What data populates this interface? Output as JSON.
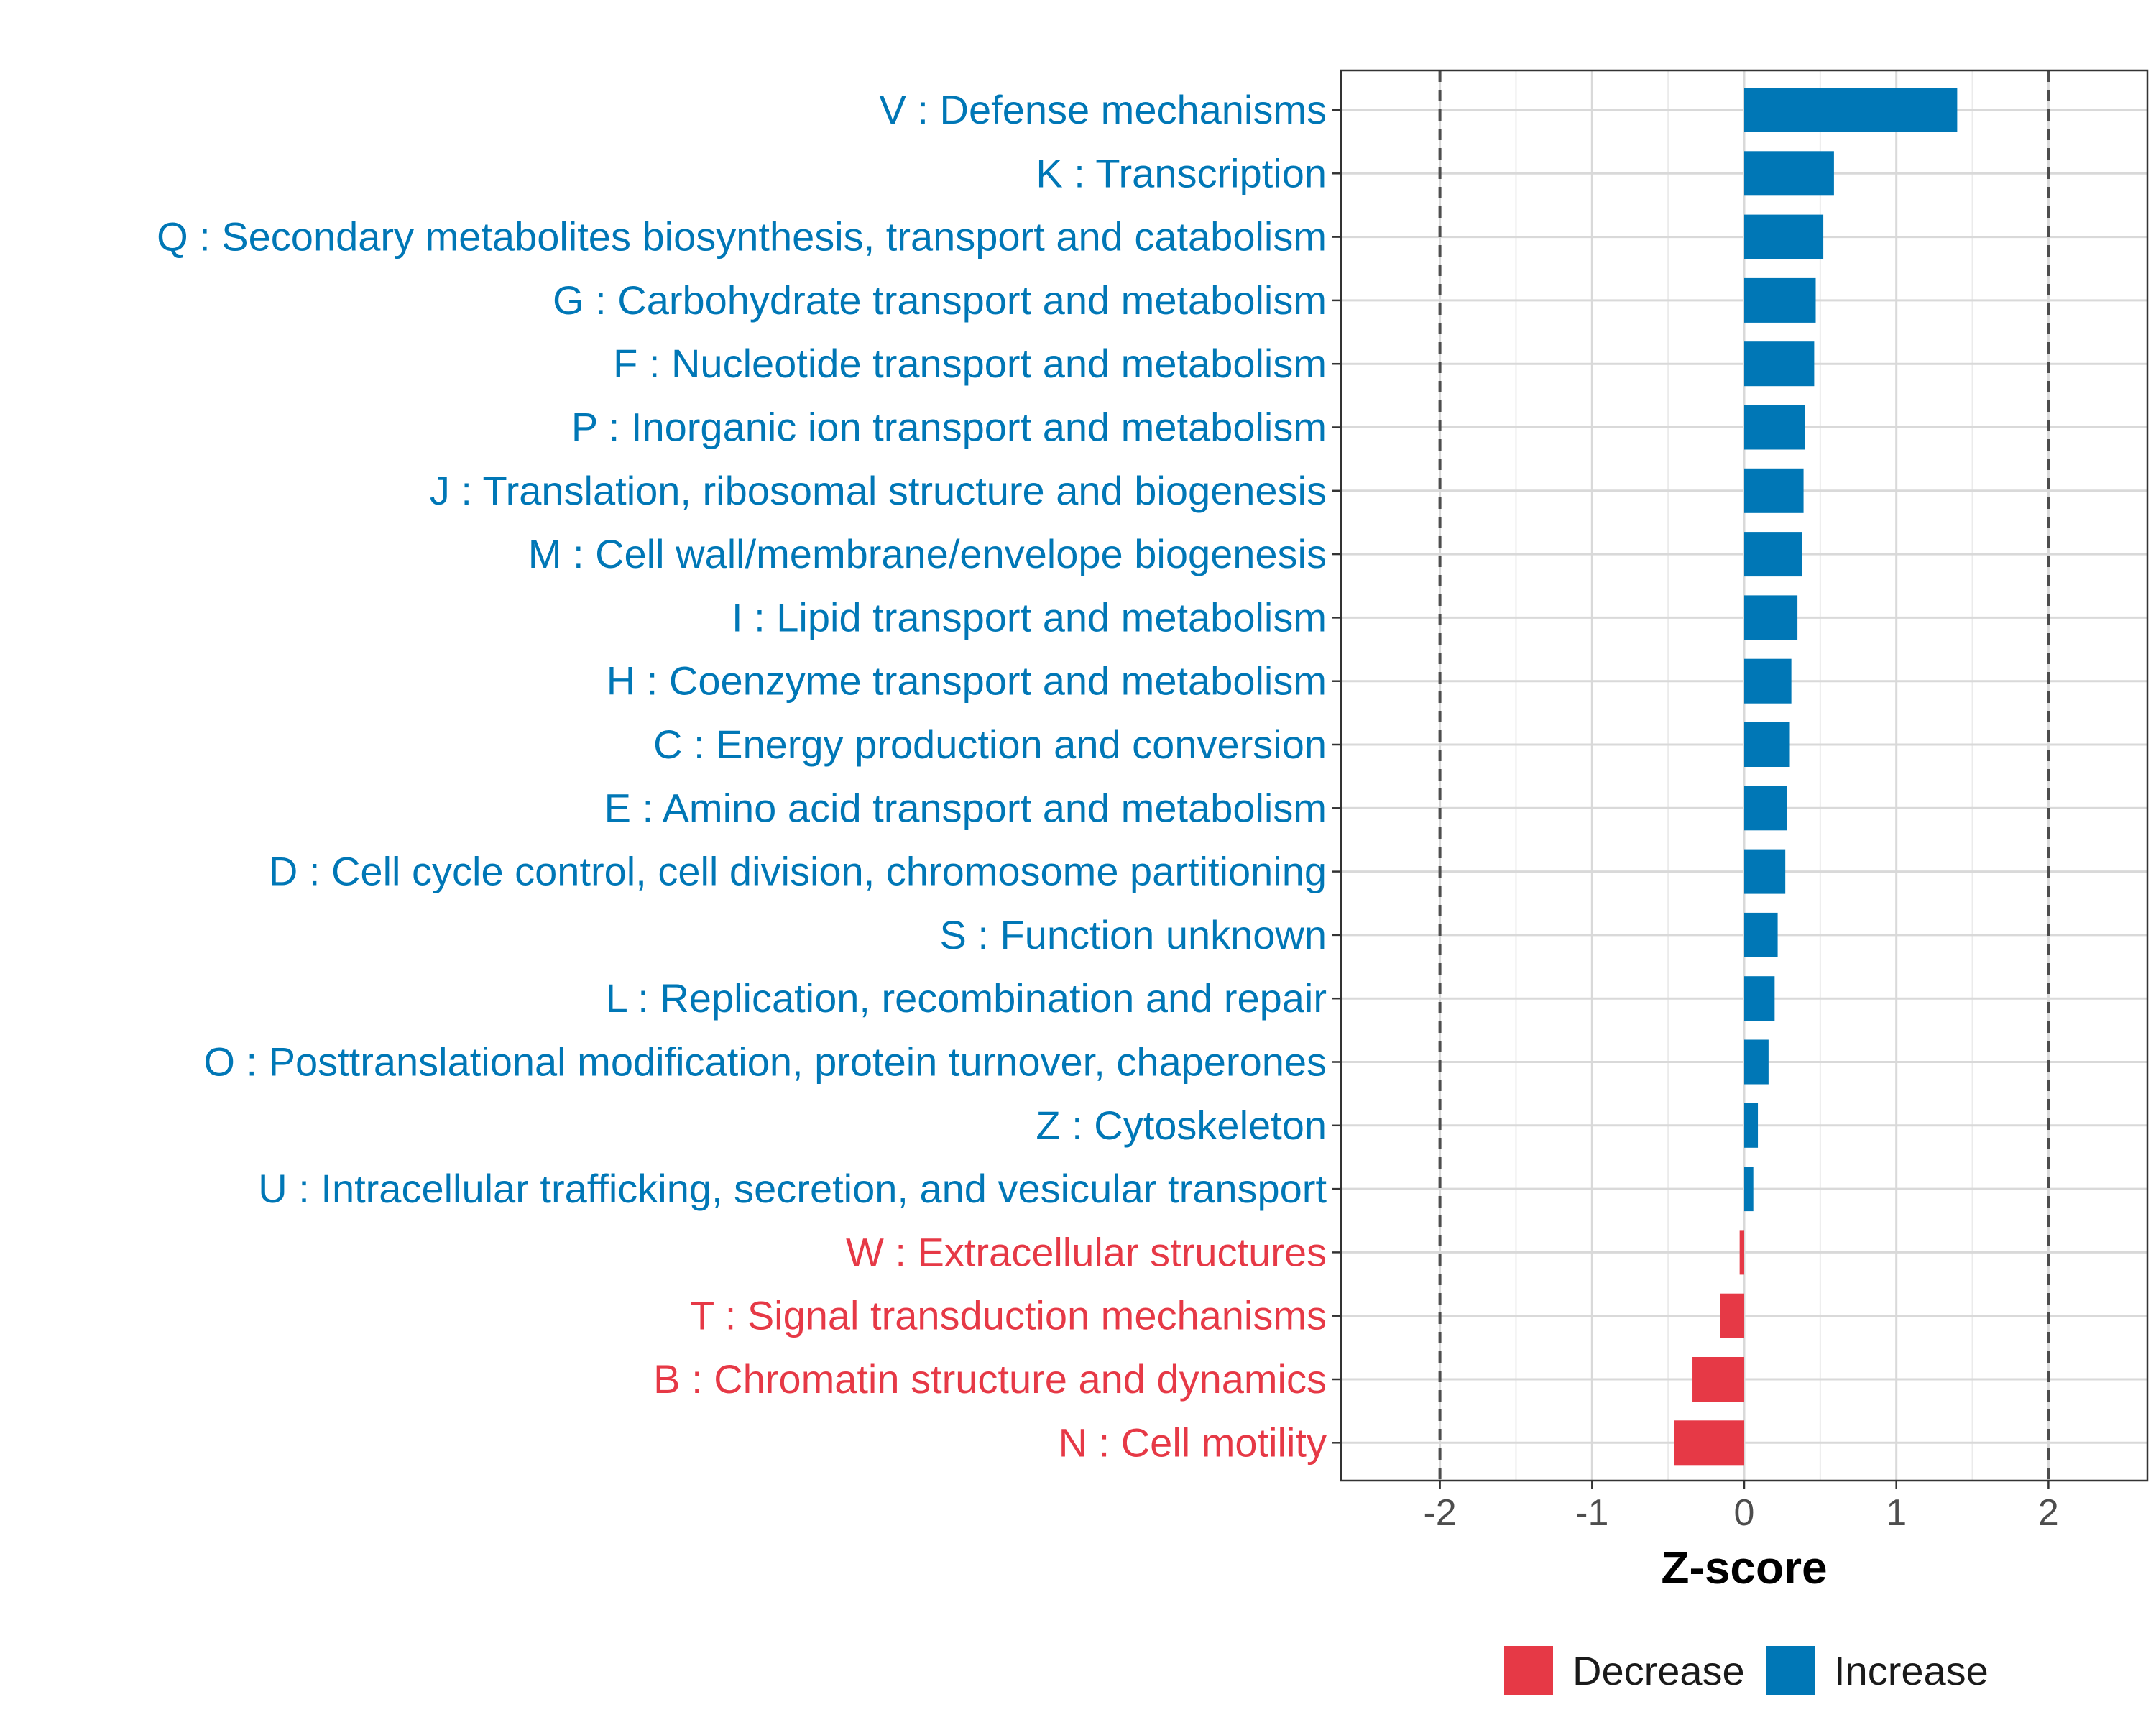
{
  "chart_data": {
    "type": "bar",
    "orientation": "horizontal",
    "xlabel": "Z-score",
    "ylabel": "",
    "xlim": [
      -2.65,
      2.65
    ],
    "xticks": [
      -2,
      -1,
      0,
      1,
      2
    ],
    "xtick_labels": [
      "-2",
      "-1",
      "0",
      "1",
      "2"
    ],
    "reference_lines": [
      -2,
      2
    ],
    "grid": true,
    "legend_position": "bottom",
    "colors": {
      "Decrease": "#e63946",
      "Increase": "#0077b6",
      "reference": "#4d4d4d"
    },
    "legend": [
      {
        "name": "Decrease",
        "color": "#e63946"
      },
      {
        "name": "Increase",
        "color": "#0077b6"
      }
    ],
    "categories": [
      {
        "label": "V : Defense mechanisms",
        "value": 1.4,
        "direction": "Increase"
      },
      {
        "label": "K : Transcription",
        "value": 0.59,
        "direction": "Increase"
      },
      {
        "label": "Q : Secondary metabolites biosynthesis, transport and catabolism",
        "value": 0.52,
        "direction": "Increase"
      },
      {
        "label": "G : Carbohydrate transport and metabolism",
        "value": 0.47,
        "direction": "Increase"
      },
      {
        "label": "F : Nucleotide transport and metabolism",
        "value": 0.46,
        "direction": "Increase"
      },
      {
        "label": "P : Inorganic ion transport and metabolism",
        "value": 0.4,
        "direction": "Increase"
      },
      {
        "label": "J : Translation, ribosomal structure and biogenesis",
        "value": 0.39,
        "direction": "Increase"
      },
      {
        "label": "M : Cell wall/membrane/envelope biogenesis",
        "value": 0.38,
        "direction": "Increase"
      },
      {
        "label": "I : Lipid transport and metabolism",
        "value": 0.35,
        "direction": "Increase"
      },
      {
        "label": "H : Coenzyme transport and metabolism",
        "value": 0.31,
        "direction": "Increase"
      },
      {
        "label": "C : Energy production and conversion",
        "value": 0.3,
        "direction": "Increase"
      },
      {
        "label": "E : Amino acid transport and metabolism",
        "value": 0.28,
        "direction": "Increase"
      },
      {
        "label": "D : Cell cycle control, cell division, chromosome partitioning",
        "value": 0.27,
        "direction": "Increase"
      },
      {
        "label": "S : Function unknown",
        "value": 0.22,
        "direction": "Increase"
      },
      {
        "label": "L : Replication, recombination and repair",
        "value": 0.2,
        "direction": "Increase"
      },
      {
        "label": "O : Posttranslational modification, protein turnover, chaperones",
        "value": 0.16,
        "direction": "Increase"
      },
      {
        "label": "Z : Cytoskeleton",
        "value": 0.09,
        "direction": "Increase"
      },
      {
        "label": "U : Intracellular trafficking, secretion, and vesicular transport",
        "value": 0.06,
        "direction": "Increase"
      },
      {
        "label": "W : Extracellular structures",
        "value": -0.03,
        "direction": "Decrease"
      },
      {
        "label": "T : Signal transduction mechanisms",
        "value": -0.16,
        "direction": "Decrease"
      },
      {
        "label": "B : Chromatin structure and dynamics",
        "value": -0.34,
        "direction": "Decrease"
      },
      {
        "label": "N : Cell motility",
        "value": -0.46,
        "direction": "Decrease"
      }
    ]
  }
}
